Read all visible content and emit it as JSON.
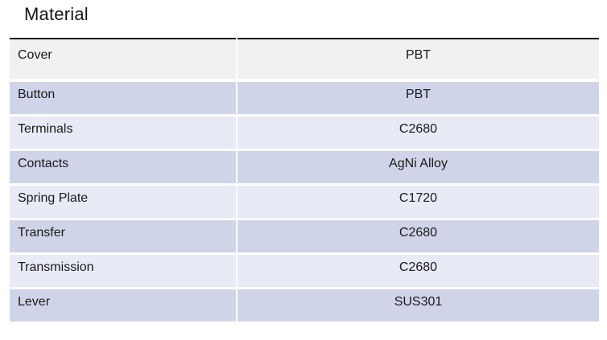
{
  "title": {
    "text": "Material"
  },
  "table": {
    "rows": [
      {
        "label": "Cover",
        "value": "PBT"
      },
      {
        "label": "Button",
        "value": "PBT"
      },
      {
        "label": "Terminals",
        "value": "C2680"
      },
      {
        "label": "Contacts",
        "value": "AgNi Alloy"
      },
      {
        "label": "Spring Plate",
        "value": "C1720"
      },
      {
        "label": "Transfer",
        "value": "C2680"
      },
      {
        "label": "Transmission",
        "value": "C2680"
      },
      {
        "label": "Lever",
        "value": "SUS301"
      }
    ],
    "colors": {
      "first_row_bg": "#f1f1f2",
      "band_dark": "#cfd4e9",
      "band_light": "#e8eaf5",
      "top_border": "#0e0e0e",
      "text": "#1a1a1a",
      "grid_gap": "#ffffff"
    }
  }
}
